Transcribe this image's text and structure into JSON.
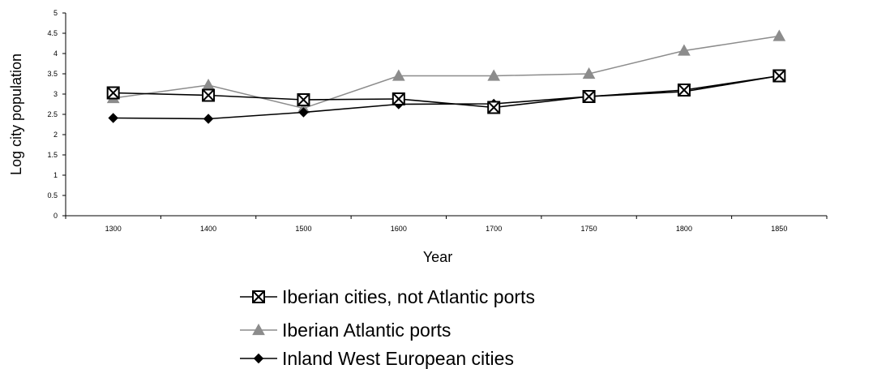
{
  "chart_data": {
    "type": "line",
    "title": "",
    "xlabel": "Year",
    "ylabel": "Log city population",
    "categories": [
      "1300",
      "1400",
      "1500",
      "1600",
      "1700",
      "1750",
      "1800",
      "1850"
    ],
    "ylim": [
      0,
      5
    ],
    "yticks": [
      "0",
      "0.5",
      "1",
      "1.5",
      "2",
      "2.5",
      "3",
      "3.5",
      "4",
      "4.5",
      "5"
    ],
    "grid": false,
    "legend_position": "bottom",
    "series": [
      {
        "name": "Iberian cities, not Atlantic ports",
        "marker": "boxed-x",
        "color": "#000000",
        "values": [
          3.03,
          2.97,
          2.86,
          2.88,
          2.67,
          2.94,
          3.1,
          3.45
        ]
      },
      {
        "name": "Iberian Atlantic ports",
        "marker": "triangle",
        "color": "#8c8c8c",
        "values": [
          2.9,
          3.22,
          2.65,
          3.45,
          3.45,
          3.5,
          4.07,
          4.43
        ]
      },
      {
        "name": "Inland West European cities",
        "marker": "diamond",
        "color": "#000000",
        "values": [
          2.41,
          2.39,
          2.55,
          2.75,
          2.76,
          2.94,
          3.06,
          3.45
        ]
      }
    ]
  }
}
